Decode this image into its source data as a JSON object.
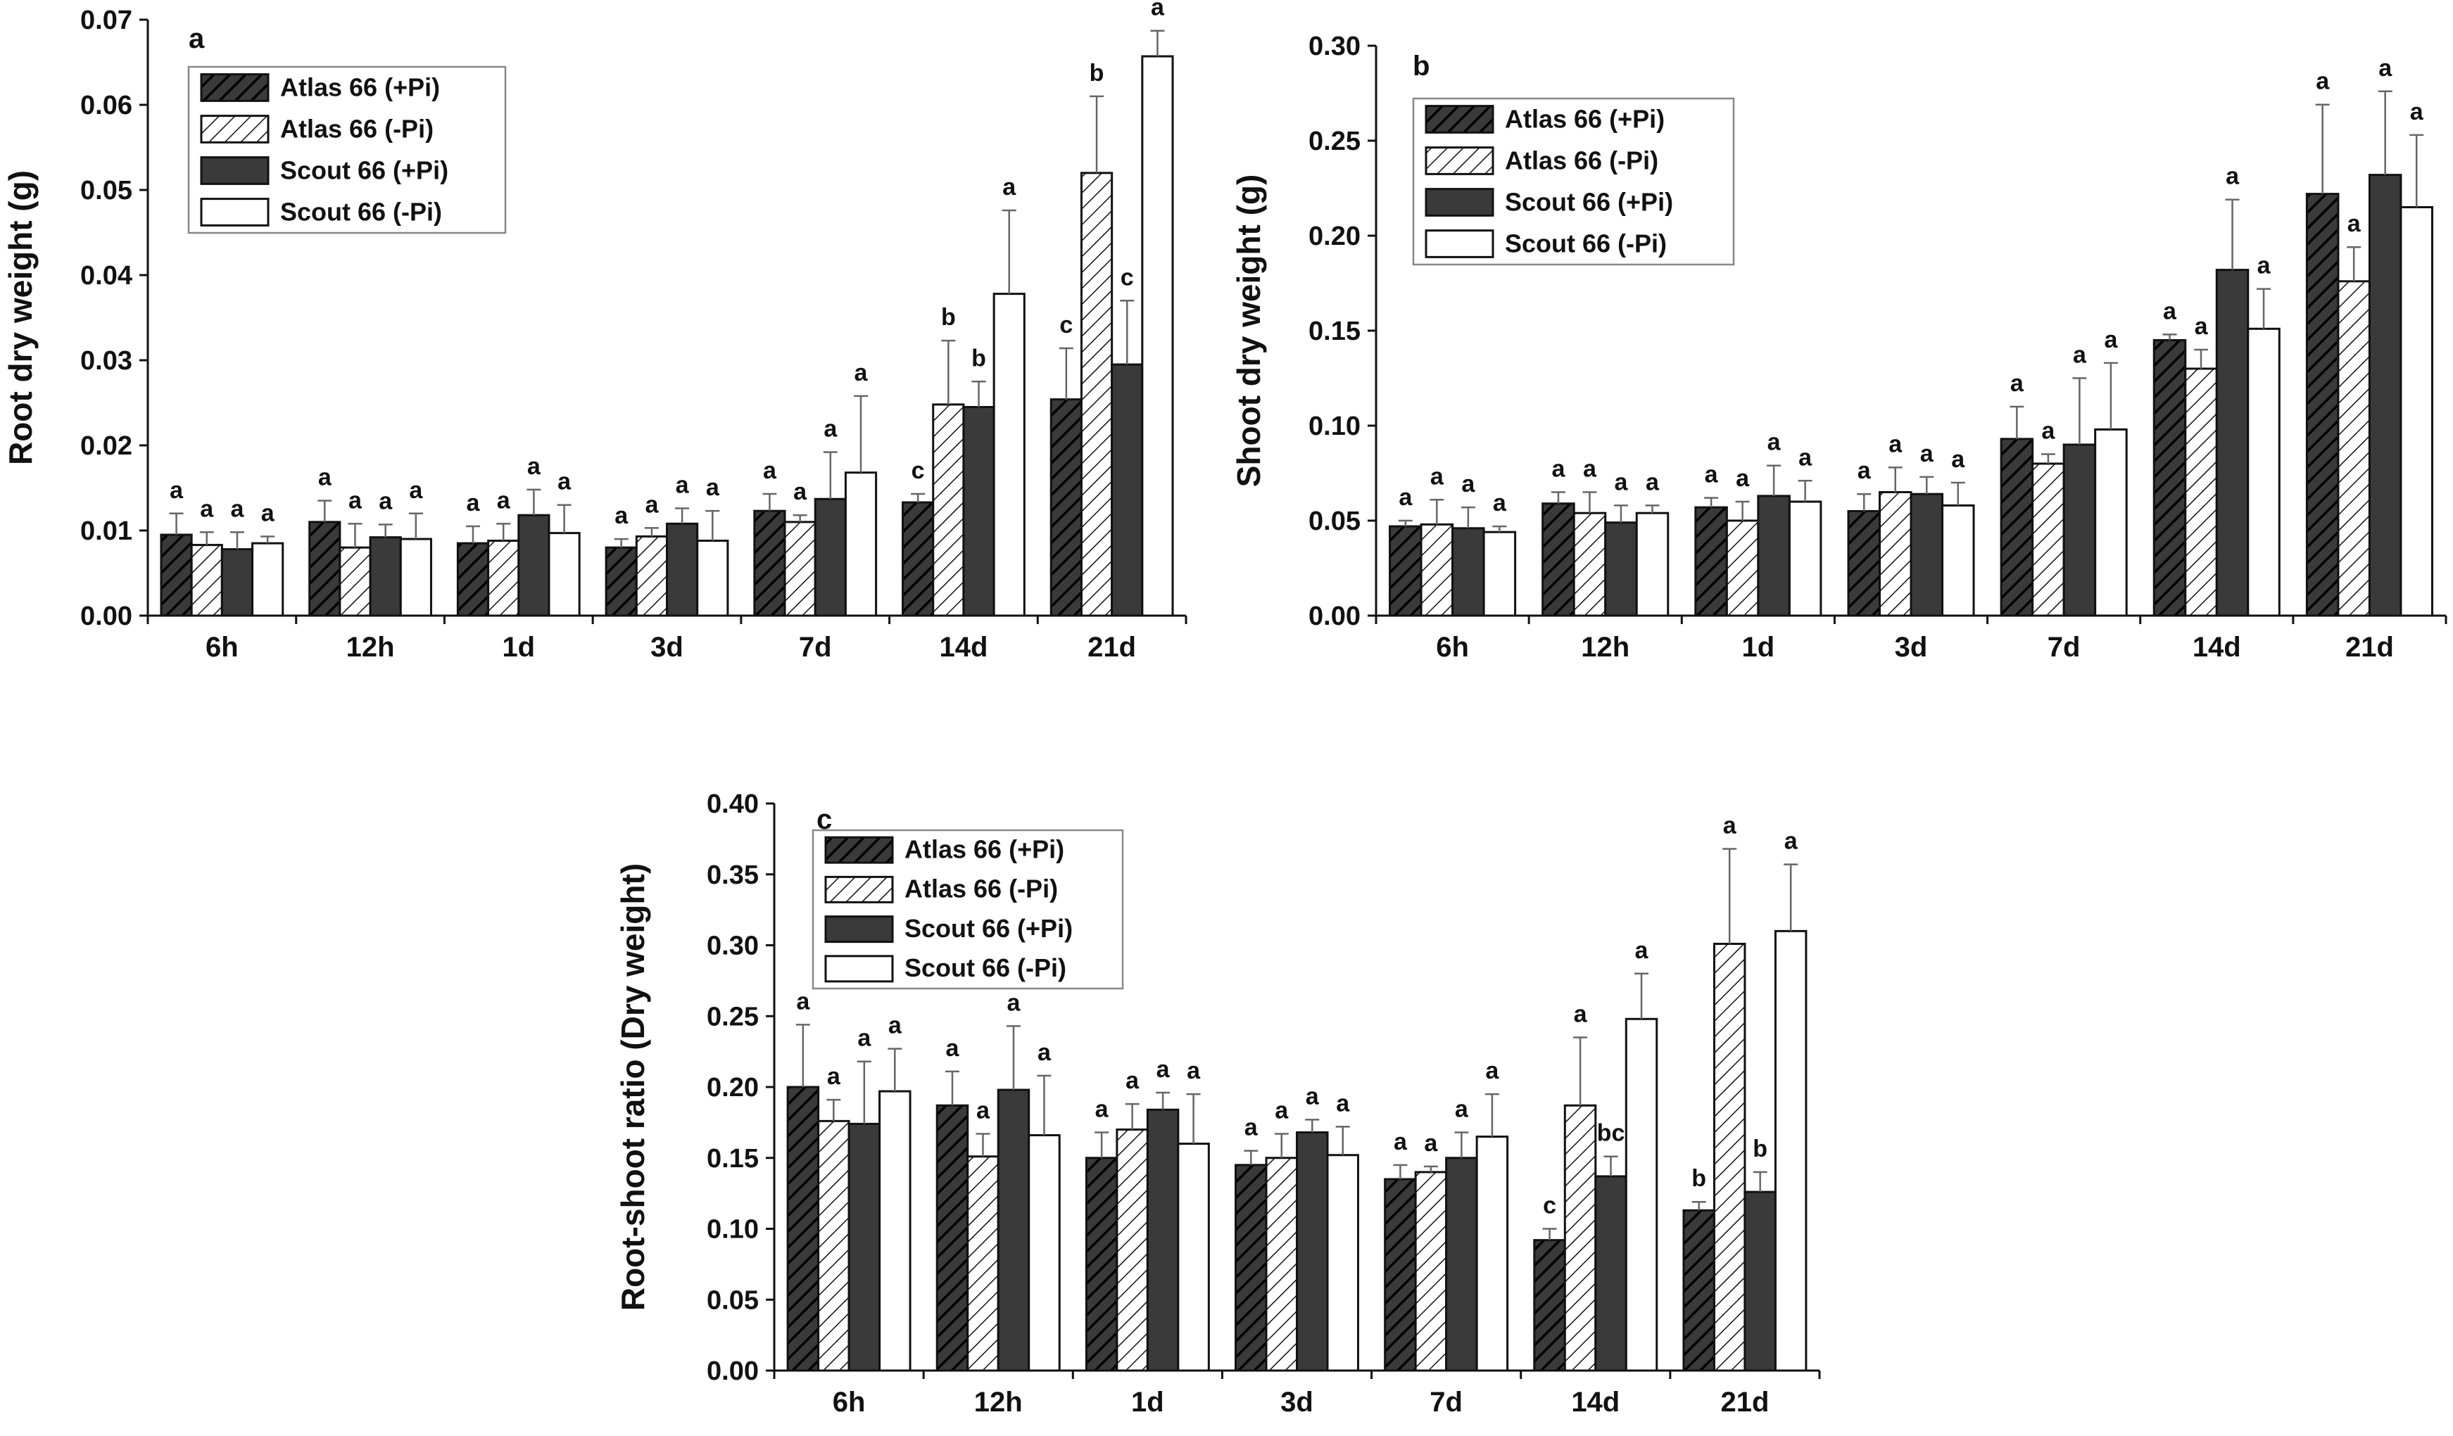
{
  "figure": {
    "series_legend": [
      "Atlas 66 (+Pi)",
      "Atlas 66 (-Pi)",
      "Scout 66 (+Pi)",
      "Scout 66 (-Pi)"
    ],
    "series_styles": [
      "hatch-dark",
      "hatch-light",
      "solid-dark",
      "open"
    ],
    "colors": {
      "dark_fill": "#3a3a3a",
      "stroke": "#111111",
      "error_bar": "#666666",
      "background": "#ffffff"
    }
  },
  "chart_data": [
    {
      "panel_label": "a",
      "type": "bar",
      "ylabel": "Root dry weight (g)",
      "xlabel": "",
      "ylim": [
        0,
        0.07
      ],
      "yticks": [
        "0.00",
        "0.01",
        "0.02",
        "0.03",
        "0.04",
        "0.05",
        "0.06",
        "0.07"
      ],
      "categories": [
        "6h",
        "12h",
        "1d",
        "3d",
        "7d",
        "14d",
        "21d"
      ],
      "legend_position": "top-left",
      "series": [
        {
          "name": "Atlas 66 (+Pi)",
          "values": [
            0.0095,
            0.011,
            0.0085,
            0.008,
            0.0123,
            0.0133,
            0.0254
          ],
          "errors": [
            0.0025,
            0.0025,
            0.002,
            0.001,
            0.002,
            0.001,
            0.006
          ],
          "letters": [
            "a",
            "a",
            "a",
            "a",
            "a",
            "c",
            "c"
          ]
        },
        {
          "name": "Atlas 66 (-Pi)",
          "values": [
            0.0083,
            0.008,
            0.0088,
            0.0093,
            0.011,
            0.0248,
            0.052
          ],
          "errors": [
            0.0015,
            0.0028,
            0.002,
            0.001,
            0.0008,
            0.0075,
            0.009
          ],
          "letters": [
            "a",
            "a",
            "a",
            "a",
            "a",
            "b",
            "b"
          ]
        },
        {
          "name": "Scout 66 (+Pi)",
          "values": [
            0.0078,
            0.0092,
            0.0118,
            0.0108,
            0.0137,
            0.0245,
            0.0295
          ],
          "errors": [
            0.002,
            0.0015,
            0.003,
            0.0018,
            0.0055,
            0.003,
            0.0075
          ],
          "letters": [
            "a",
            "a",
            "a",
            "a",
            "a",
            "b",
            "c"
          ]
        },
        {
          "name": "Scout 66 (-Pi)",
          "values": [
            0.0085,
            0.009,
            0.0097,
            0.0088,
            0.0168,
            0.0378,
            0.0657
          ],
          "errors": [
            0.0008,
            0.003,
            0.0033,
            0.0035,
            0.009,
            0.0098,
            0.003
          ],
          "letters": [
            "a",
            "a",
            "a",
            "a",
            "a",
            "a",
            "a"
          ]
        }
      ]
    },
    {
      "panel_label": "b",
      "type": "bar",
      "ylabel": "Shoot dry weight (g)",
      "xlabel": "",
      "ylim": [
        0,
        0.3
      ],
      "yticks": [
        "0.00",
        "0.05",
        "0.10",
        "0.15",
        "0.20",
        "0.25",
        "0.30"
      ],
      "categories": [
        "6h",
        "12h",
        "1d",
        "3d",
        "7d",
        "14d",
        "21d"
      ],
      "legend_position": "top-left",
      "series": [
        {
          "name": "Atlas 66 (+Pi)",
          "values": [
            0.047,
            0.059,
            0.057,
            0.055,
            0.093,
            0.145,
            0.222
          ],
          "errors": [
            0.003,
            0.006,
            0.005,
            0.009,
            0.017,
            0.003,
            0.047
          ],
          "letters": [
            "a",
            "a",
            "a",
            "a",
            "a",
            "a",
            "a"
          ]
        },
        {
          "name": "Atlas 66 (-Pi)",
          "values": [
            0.048,
            0.054,
            0.05,
            0.065,
            0.08,
            0.13,
            0.176
          ],
          "errors": [
            0.013,
            0.011,
            0.01,
            0.013,
            0.005,
            0.01,
            0.018
          ],
          "letters": [
            "a",
            "a",
            "a",
            "a",
            "a",
            "a",
            "a"
          ]
        },
        {
          "name": "Scout 66 (+Pi)",
          "values": [
            0.046,
            0.049,
            0.063,
            0.064,
            0.09,
            0.182,
            0.232
          ],
          "errors": [
            0.011,
            0.009,
            0.016,
            0.009,
            0.035,
            0.037,
            0.044
          ],
          "letters": [
            "a",
            "a",
            "a",
            "a",
            "a",
            "a",
            "a"
          ]
        },
        {
          "name": "Scout 66 (-Pi)",
          "values": [
            0.044,
            0.054,
            0.06,
            0.058,
            0.098,
            0.151,
            0.215
          ],
          "errors": [
            0.003,
            0.004,
            0.011,
            0.012,
            0.035,
            0.021,
            0.038
          ],
          "letters": [
            "a",
            "a",
            "a",
            "a",
            "a",
            "a",
            "a"
          ]
        }
      ]
    },
    {
      "panel_label": "c",
      "type": "bar",
      "ylabel": "Root-shoot ratio (Dry weight)",
      "xlabel": "",
      "ylim": [
        0,
        0.4
      ],
      "yticks": [
        "0.00",
        "0.05",
        "0.10",
        "0.15",
        "0.20",
        "0.25",
        "0.30",
        "0.35",
        "0.40"
      ],
      "categories": [
        "6h",
        "12h",
        "1d",
        "3d",
        "7d",
        "14d",
        "21d"
      ],
      "legend_position": "top-left",
      "series": [
        {
          "name": "Atlas 66 (+Pi)",
          "values": [
            0.2,
            0.187,
            0.15,
            0.145,
            0.135,
            0.092,
            0.113
          ],
          "errors": [
            0.044,
            0.024,
            0.018,
            0.01,
            0.01,
            0.008,
            0.006
          ],
          "letters": [
            "a",
            "a",
            "a",
            "a",
            "a",
            "c",
            "b"
          ]
        },
        {
          "name": "Atlas 66 (-Pi)",
          "values": [
            0.176,
            0.151,
            0.17,
            0.15,
            0.14,
            0.187,
            0.301
          ],
          "errors": [
            0.015,
            0.016,
            0.018,
            0.017,
            0.004,
            0.048,
            0.067
          ],
          "letters": [
            "a",
            "a",
            "a",
            "a",
            "a",
            "a",
            "a"
          ]
        },
        {
          "name": "Scout 66 (+Pi)",
          "values": [
            0.174,
            0.198,
            0.184,
            0.168,
            0.15,
            0.137,
            0.126
          ],
          "errors": [
            0.044,
            0.045,
            0.012,
            0.009,
            0.018,
            0.014,
            0.014
          ],
          "letters": [
            "a",
            "a",
            "a",
            "a",
            "a",
            "bc",
            "b"
          ]
        },
        {
          "name": "Scout 66 (-Pi)",
          "values": [
            0.197,
            0.166,
            0.16,
            0.152,
            0.165,
            0.248,
            0.31
          ],
          "errors": [
            0.03,
            0.042,
            0.035,
            0.02,
            0.03,
            0.032,
            0.047
          ],
          "letters": [
            "a",
            "a",
            "a",
            "a",
            "a",
            "a",
            "a"
          ]
        }
      ]
    }
  ]
}
